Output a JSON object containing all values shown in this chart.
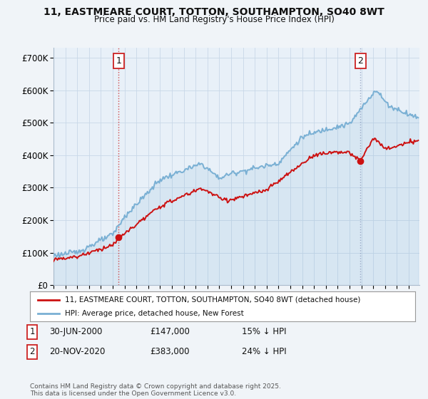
{
  "title_line1": "11, EASTMEARE COURT, TOTTON, SOUTHAMPTON, SO40 8WT",
  "title_line2": "Price paid vs. HM Land Registry's House Price Index (HPI)",
  "ylim": [
    0,
    730000
  ],
  "yticks": [
    0,
    100000,
    200000,
    300000,
    400000,
    500000,
    600000,
    700000
  ],
  "ytick_labels": [
    "£0",
    "£100K",
    "£200K",
    "£300K",
    "£400K",
    "£500K",
    "£600K",
    "£700K"
  ],
  "xlim_start": 1995.0,
  "xlim_end": 2025.9,
  "hpi_color": "#7ab0d4",
  "hpi_fill_color": "#ddeeff",
  "price_color": "#cc1111",
  "transaction1_x": 2000.5,
  "transaction1_y": 147000,
  "transaction1_label": "1",
  "transaction2_x": 2020.92,
  "transaction2_y": 383000,
  "transaction2_label": "2",
  "transaction1_date": "30-JUN-2000",
  "transaction1_price": "£147,000",
  "transaction1_hpi": "15% ↓ HPI",
  "transaction2_date": "20-NOV-2020",
  "transaction2_price": "£383,000",
  "transaction2_hpi": "24% ↓ HPI",
  "legend_label1": "11, EASTMEARE COURT, TOTTON, SOUTHAMPTON, SO40 8WT (detached house)",
  "legend_label2": "HPI: Average price, detached house, New Forest",
  "footer_text": "Contains HM Land Registry data © Crown copyright and database right 2025.\nThis data is licensed under the Open Government Licence v3.0.",
  "background_color": "#f0f4f8",
  "plot_bg_color": "#e8f0f8",
  "grid_color": "#c8d8e8"
}
